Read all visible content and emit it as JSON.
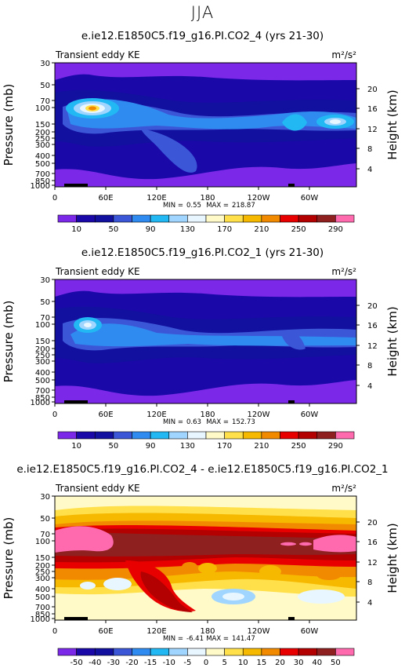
{
  "season": "JJA",
  "colors": {
    "levels_abs": [
      "#7b28e8",
      "#1a09a8",
      "#12109e",
      "#3b57d8",
      "#2f8bf0",
      "#22b8f4",
      "#9fd5ff",
      "#e8f6ff",
      "#fffac8",
      "#ffe04a",
      "#f7b800",
      "#f28a00",
      "#e80000",
      "#b30000",
      "#8e2020",
      "#ff6aaf"
    ],
    "levels_diff": [
      "#7b28e8",
      "#1a09a8",
      "#12109e",
      "#3b57d8",
      "#2f8bf0",
      "#22b8f4",
      "#9fd5ff",
      "#e8f6ff",
      "#fffac8",
      "#ffe04a",
      "#f7b800",
      "#f28a00",
      "#e80000",
      "#b30000",
      "#8e2020",
      "#ff6aaf"
    ]
  },
  "chart_data": [
    {
      "type": "heatmap",
      "title": "e.ie12.E1850C5.f19_g16.PI.CO2_4 (yrs 21-30)",
      "variable": "Transient eddy KE",
      "units": "m²/s²",
      "ylabel": "Pressure (mb)",
      "ylabel_right": "Height (km)",
      "x_ticks": [
        "0",
        "60E",
        "120E",
        "180",
        "120W",
        "60W"
      ],
      "y_ticks": [
        "30",
        "50",
        "70",
        "100",
        "150",
        "200",
        "250",
        "300",
        "400",
        "500",
        "700",
        "850",
        "1000"
      ],
      "height_ticks": [
        "20",
        "16",
        "12",
        "8",
        "4"
      ],
      "min_label": "MIN =",
      "min_value": "0.55",
      "max_label": "MAX =",
      "max_value": "218.87",
      "colorbar_labels": [
        "10",
        "50",
        "90",
        "130",
        "170",
        "210",
        "250",
        "290"
      ]
    },
    {
      "type": "heatmap",
      "title": "e.ie12.E1850C5.f19_g16.PI.CO2_1 (yrs 21-30)",
      "variable": "Transient eddy KE",
      "units": "m²/s²",
      "ylabel": "Pressure (mb)",
      "ylabel_right": "Height (km)",
      "x_ticks": [
        "0",
        "60E",
        "120E",
        "180",
        "120W",
        "60W"
      ],
      "y_ticks": [
        "30",
        "50",
        "70",
        "100",
        "150",
        "200",
        "250",
        "300",
        "400",
        "500",
        "700",
        "850",
        "1000"
      ],
      "height_ticks": [
        "20",
        "16",
        "12",
        "8",
        "4"
      ],
      "min_label": "MIN =",
      "min_value": "0.63",
      "max_label": "MAX =",
      "max_value": "152.73",
      "colorbar_labels": [
        "10",
        "50",
        "90",
        "130",
        "170",
        "210",
        "250",
        "290"
      ]
    },
    {
      "type": "heatmap",
      "title": "e.ie12.E1850C5.f19_g16.PI.CO2_4 - e.ie12.E1850C5.f19_g16.PI.CO2_1",
      "variable": "Transient eddy KE",
      "units": "m²/s²",
      "ylabel": "Pressure (mb)",
      "ylabel_right": "Height (km)",
      "x_ticks": [
        "0",
        "60E",
        "120E",
        "180",
        "120W",
        "60W"
      ],
      "y_ticks": [
        "30",
        "50",
        "70",
        "100",
        "150",
        "200",
        "250",
        "300",
        "400",
        "500",
        "700",
        "850",
        "1000"
      ],
      "height_ticks": [
        "20",
        "16",
        "12",
        "8",
        "4"
      ],
      "min_label": "MIN =",
      "min_value": "-6.41",
      "max_label": "MAX =",
      "max_value": "141.47",
      "colorbar_labels": [
        "-50",
        "-40",
        "-30",
        "-20",
        "-15",
        "-10",
        "-5",
        "0",
        "5",
        "10",
        "15",
        "20",
        "30",
        "40",
        "50"
      ]
    }
  ]
}
